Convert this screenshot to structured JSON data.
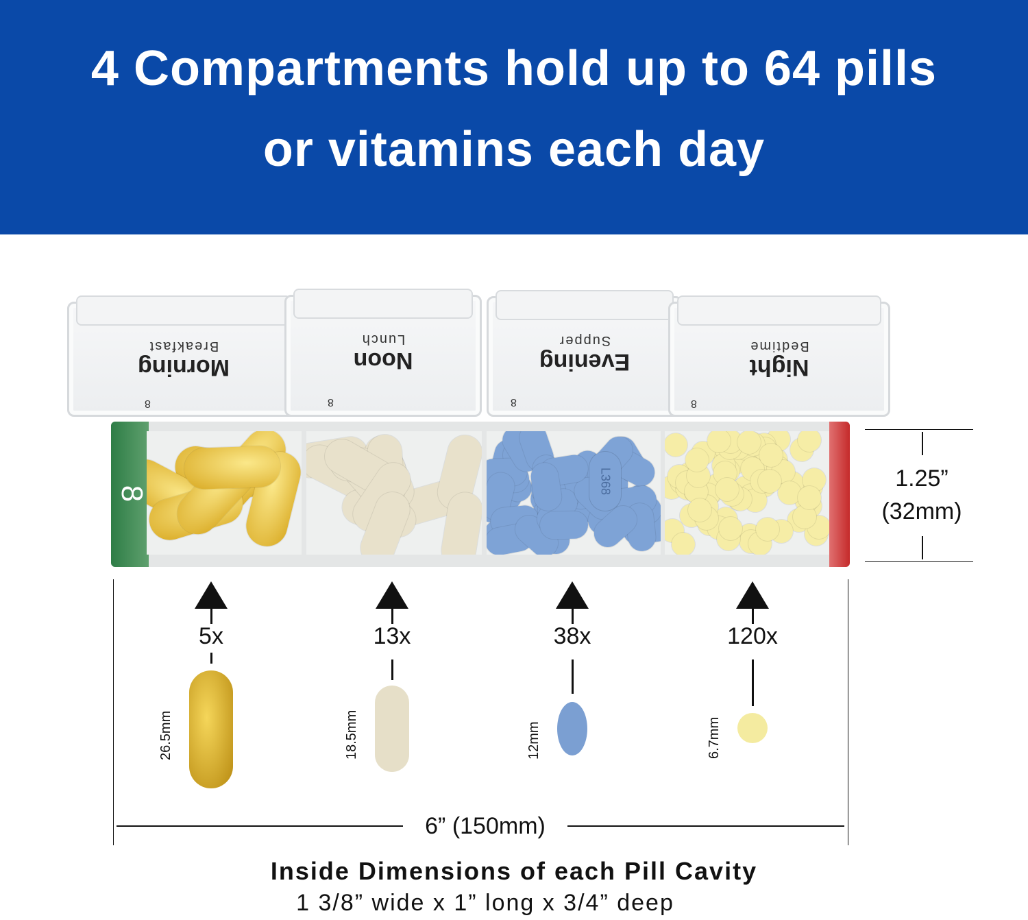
{
  "header": {
    "line1": "4 Compartments hold up to 64 pills",
    "line2": "or vitamins each day",
    "background_color": "#0a49a8"
  },
  "lids": [
    {
      "label": "Morning",
      "sub": "Breakfast",
      "number": "8"
    },
    {
      "label": "Noon",
      "sub": "Lunch",
      "number": "8"
    },
    {
      "label": "Evening",
      "sub": "Supper",
      "number": "8"
    },
    {
      "label": "Night",
      "sub": "Bedtime",
      "number": "8"
    }
  ],
  "tray": {
    "side_number": "8",
    "left_color": "#2e7d46",
    "right_color": "#c52a2a"
  },
  "height_dimension": {
    "inches": "1.25”",
    "mm": "(32mm)"
  },
  "pills": [
    {
      "count": "5x",
      "size": "26.5mm",
      "color": "#d8b22a",
      "imprint": ""
    },
    {
      "count": "13x",
      "size": "18.5mm",
      "color": "#e6dfc8",
      "imprint": ""
    },
    {
      "count": "38x",
      "size": "12mm",
      "color": "#7b9fd2",
      "imprint": "L368"
    },
    {
      "count": "120x",
      "size": "6.7mm",
      "color": "#f4eba0",
      "imprint": ""
    }
  ],
  "width_dimension": "6” (150mm)",
  "footer": {
    "title": "Inside Dimensions of each Pill Cavity",
    "dimensions": "1 3/8” wide x 1” long x 3/4” deep"
  }
}
